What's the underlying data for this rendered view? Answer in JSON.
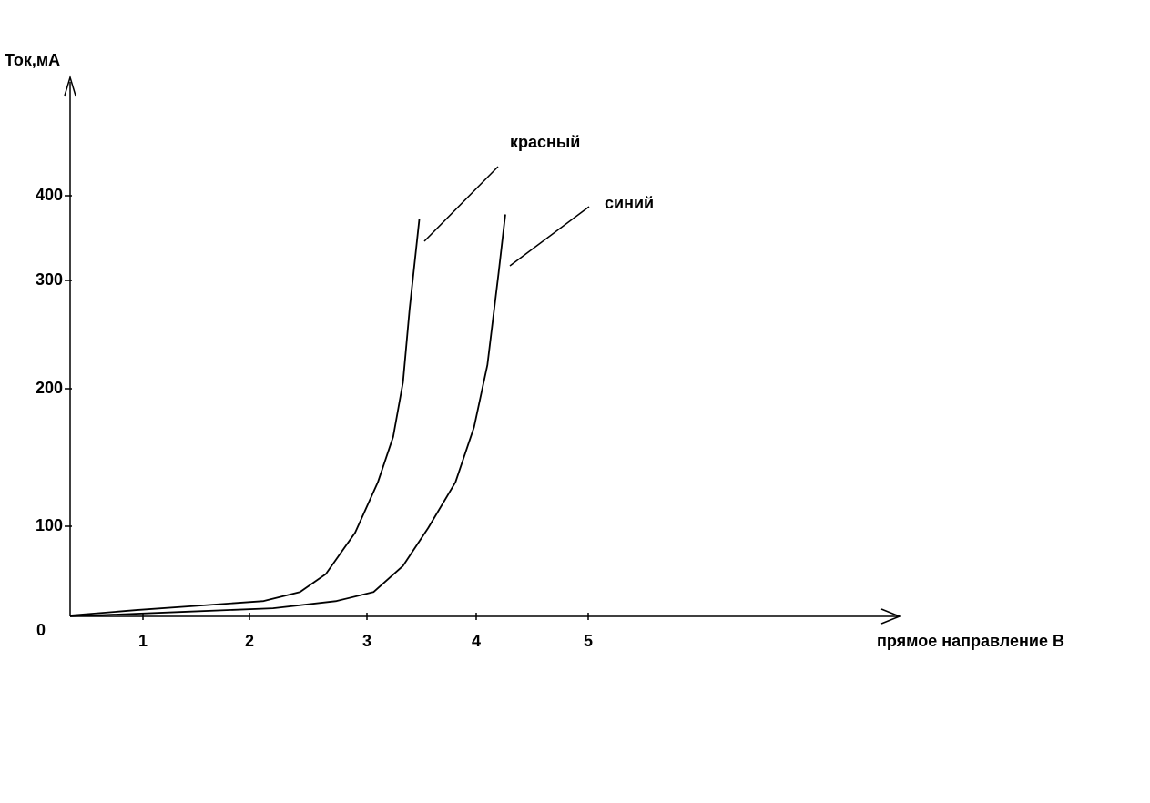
{
  "chart_data": {
    "type": "line",
    "y_label": "Ток,мА",
    "x_label": "прямое направление В",
    "origin_label": "0",
    "xlim": [
      0,
      7.8
    ],
    "xticks": [
      1,
      2,
      3,
      4,
      5
    ],
    "ylim": [
      0,
      530
    ],
    "yticks": [
      100,
      200,
      300,
      400
    ],
    "series": [
      {
        "name": "красный",
        "color": "#000000",
        "x": [
          0,
          0.91,
          1.54,
          2.12,
          2.43,
          2.65,
          2.9,
          3.1,
          3.24,
          3.33,
          3.39,
          3.48
        ],
        "values": [
          1,
          7,
          12,
          17,
          27,
          47,
          93,
          132,
          165,
          206,
          273,
          373
        ]
      },
      {
        "name": "синий",
        "color": "#000000",
        "x": [
          0,
          1.37,
          2.2,
          2.74,
          3.06,
          3.33,
          3.56,
          3.81,
          3.98,
          4.1,
          4.2,
          4.26
        ],
        "values": [
          0,
          5,
          9,
          17,
          27,
          56,
          98,
          132,
          172,
          222,
          309,
          378
        ]
      }
    ]
  }
}
